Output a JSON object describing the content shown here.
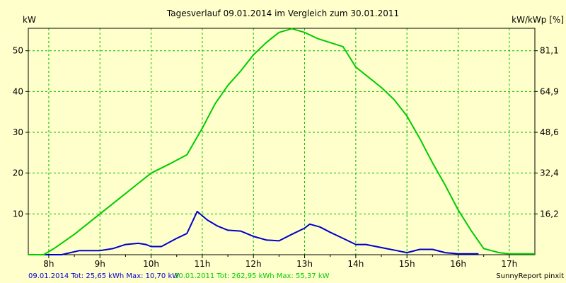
{
  "chart_data": {
    "type": "line",
    "title": "Tagesverlauf 09.01.2014 im Vergleich zum 30.01.2011",
    "ylabel_left": "kW",
    "ylabel_right": "kW/kWp [%]",
    "x_tick_labels": [
      "8h",
      "9h",
      "10h",
      "11h",
      "12h",
      "13h",
      "14h",
      "15h",
      "16h",
      "17h"
    ],
    "y_ticks_left": [
      10,
      20,
      30,
      40,
      50
    ],
    "y_tick_labels_right": [
      "16,2",
      "32,4",
      "48,6",
      "64,9",
      "81,1"
    ],
    "xlim": [
      7.6,
      17.5
    ],
    "ylim": [
      0,
      55.5
    ],
    "grid": true,
    "series": [
      {
        "color": "#0000cc",
        "summary": "09.01.2014 Tot: 25,65 kWh Max: 10,70 kW",
        "x": [
          7.6,
          8.25,
          8.6,
          9.0,
          9.25,
          9.5,
          9.75,
          9.9,
          10.0,
          10.2,
          10.5,
          10.7,
          10.9,
          11.1,
          11.3,
          11.5,
          11.75,
          12.0,
          12.25,
          12.5,
          12.75,
          13.0,
          13.1,
          13.3,
          13.5,
          13.75,
          14.0,
          14.2,
          14.4,
          14.6,
          14.8,
          15.0,
          15.25,
          15.5,
          15.75,
          16.0,
          16.25,
          16.4
        ],
        "values": [
          0,
          0,
          1.0,
          1.0,
          1.5,
          2.5,
          2.8,
          2.5,
          2.0,
          2.0,
          4.0,
          5.2,
          10.6,
          8.5,
          7.0,
          6.0,
          5.8,
          4.5,
          3.6,
          3.4,
          5.0,
          6.5,
          7.5,
          6.8,
          5.5,
          4.0,
          2.5,
          2.5,
          2.0,
          1.5,
          1.0,
          0.5,
          1.3,
          1.3,
          0.5,
          0.2,
          0.2,
          0.2
        ]
      },
      {
        "color": "#00cc00",
        "summary": "30.01.2011 Tot: 262,95 kWh Max: 55,37 kW",
        "x": [
          7.6,
          7.9,
          8.1,
          8.5,
          9.0,
          9.4,
          9.75,
          10.0,
          10.4,
          10.7,
          11.0,
          11.25,
          11.5,
          11.75,
          12.0,
          12.25,
          12.5,
          12.75,
          13.0,
          13.25,
          13.5,
          13.75,
          14.0,
          14.25,
          14.5,
          14.75,
          15.0,
          15.25,
          15.5,
          15.75,
          16.0,
          16.25,
          16.5,
          16.65,
          16.8,
          17.0,
          17.3,
          17.5
        ],
        "values": [
          0,
          0,
          1.5,
          5.0,
          10.0,
          14.0,
          17.5,
          20.0,
          22.5,
          24.5,
          31.0,
          37.0,
          41.5,
          45.0,
          49.0,
          52.0,
          54.5,
          55.4,
          54.5,
          53.0,
          52.0,
          51.0,
          46.0,
          43.5,
          41.0,
          38.0,
          34.0,
          28.5,
          22.5,
          17.0,
          11.0,
          6.0,
          1.5,
          1.0,
          0.5,
          0.2,
          0.2,
          0.2
        ]
      }
    ]
  },
  "footer": {
    "brand": "SunnyReport pinxit"
  }
}
